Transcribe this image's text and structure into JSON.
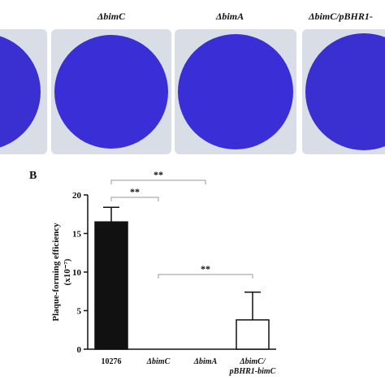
{
  "photos": {
    "labels": [
      "ΔbimC",
      "ΔbimA",
      "ΔbimC/pBHR1-"
    ]
  },
  "panel_label": "B",
  "chart_data": {
    "type": "bar",
    "y_label": "Plaque-forming efficiency",
    "y_label_unit": "(x10⁻⁷)",
    "categories": [
      "10276",
      "ΔbimC",
      "ΔbimA",
      "ΔbimC/ pBHR1-bimC"
    ],
    "values": [
      16.5,
      0,
      0,
      3.8
    ],
    "errors": [
      1.9,
      null,
      null,
      3.6
    ],
    "colors": [
      "#111111",
      "#ffffff",
      "#ffffff",
      "#ffffff"
    ],
    "ylim": [
      0,
      20
    ],
    "yticks": [
      0,
      5,
      10,
      15,
      20
    ],
    "significance": [
      {
        "between": [
          "10276",
          "ΔbimC"
        ],
        "label": "**"
      },
      {
        "between": [
          "10276",
          "ΔbimA"
        ],
        "label": "**"
      },
      {
        "between": [
          "ΔbimC",
          "ΔbimC/ pBHR1-bimC"
        ],
        "label": "**"
      }
    ]
  }
}
